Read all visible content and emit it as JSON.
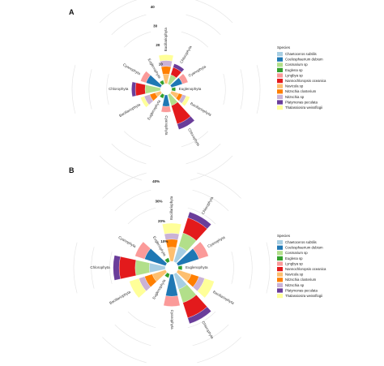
{
  "figure": {
    "colors": {
      "Chaetoceros subtilis": "#a6cee3",
      "Coelosphaerium dubium": "#1f78b4",
      "Cosmarium sp": "#b2df8a",
      "Euglena sp": "#33a02c",
      "Lyngbya sp": "#fb9a99",
      "Nannochloropsis oceanica": "#e31a1c",
      "Navicula sp": "#fdbf6f",
      "Nitzschia closterium": "#ff7f00",
      "Nitzschia sp": "#cab2d6",
      "Platymonas peculata": "#6a3d9a",
      "Thalassiosira weissflogii": "#ffff99"
    }
  },
  "chart_data": [
    {
      "type": "stacked-polar-bar",
      "panel": "A",
      "legend": {
        "title": "Species",
        "position": "right",
        "items": [
          "Chaetoceros subtilis",
          "Coelosphaerium dubium",
          "Cosmarium sp",
          "Euglena sp",
          "Lyngbya sp",
          "Nannochloropsis oceanica",
          "Navicula sp",
          "Nitzschia closterium",
          "Nitzschia sp",
          "Platymonas peculata",
          "Thalassiosira weissflogii"
        ]
      },
      "radial_axis": {
        "ticks": [
          "10",
          "20",
          "30",
          "40"
        ],
        "max": 40
      },
      "grid": true,
      "categories": [
        "Bacillariophyta",
        "Chlorophyta",
        "Cyanophyta",
        "Euglenophyta",
        "Bacillariophyta",
        "Chlorophyta",
        "Cyanophyta",
        "Euglenophyta",
        "Bacillariophyta",
        "Chlorophyta",
        "Cyanophyta",
        "Euglenophyta"
      ],
      "series": [
        {
          "name": "Chaetoceros subtilis",
          "values": [
            0,
            0,
            0,
            0,
            0,
            0,
            0,
            0,
            0,
            0,
            0,
            0
          ]
        },
        {
          "name": "Coelosphaerium dubium",
          "values": [
            0,
            0,
            6,
            0,
            0,
            0,
            6,
            0,
            0,
            0,
            8,
            0
          ]
        },
        {
          "name": "Cosmarium sp",
          "values": [
            0,
            5,
            0,
            0,
            0,
            6,
            0,
            0,
            0,
            8,
            0,
            0
          ]
        },
        {
          "name": "Euglena sp",
          "values": [
            0,
            0,
            0,
            2,
            0,
            0,
            0,
            2,
            0,
            0,
            0,
            2
          ]
        },
        {
          "name": "Lyngbya sp",
          "values": [
            0,
            0,
            3,
            0,
            0,
            0,
            3,
            0,
            0,
            0,
            3,
            0
          ]
        },
        {
          "name": "Nannochloropsis oceanica",
          "values": [
            0,
            4,
            0,
            0,
            0,
            10,
            0,
            0,
            0,
            5,
            0,
            0
          ]
        },
        {
          "name": "Navicula sp",
          "values": [
            5,
            0,
            0,
            0,
            4,
            0,
            0,
            0,
            3,
            0,
            0,
            0
          ]
        },
        {
          "name": "Nitzschia closterium",
          "values": [
            4,
            0,
            0,
            0,
            2,
            0,
            0,
            0,
            3,
            0,
            0,
            0
          ]
        },
        {
          "name": "Nitzschia sp",
          "values": [
            3,
            0,
            0,
            0,
            2,
            0,
            0,
            0,
            3,
            0,
            0,
            0
          ]
        },
        {
          "name": "Platymonas peculata",
          "values": [
            0,
            2,
            0,
            0,
            0,
            3,
            0,
            0,
            0,
            2,
            0,
            0
          ]
        },
        {
          "name": "Thalassiosira weissflogii",
          "values": [
            3,
            0,
            0,
            0,
            2,
            0,
            0,
            0,
            2,
            0,
            0,
            0
          ]
        }
      ]
    },
    {
      "type": "stacked-polar-bar",
      "panel": "B",
      "legend": {
        "title": "Species",
        "position": "right",
        "items": [
          "Chaetoceros subtilis",
          "Coelosphaerium dubium",
          "Cosmarium sp",
          "Euglena sp",
          "Lyngbya sp",
          "Nannochloropsis oceanica",
          "Navicula sp",
          "Nitzschia closterium",
          "Nitzschia sp",
          "Platymonas peculata",
          "Thalassiosira weissflogii"
        ]
      },
      "radial_axis": {
        "ticks": [
          "10%",
          "20%",
          "30%",
          "40%"
        ],
        "max": 40
      },
      "grid": true,
      "categories": [
        "Bacillariophyta",
        "Chlorophyta",
        "Cyanophyta",
        "Euglenophyta",
        "Bacillariophyta",
        "Chlorophyta",
        "Cyanophyta",
        "Euglenophyta",
        "Bacillariophyta",
        "Chlorophyta",
        "Cyanophyta",
        "Euglenophyta"
      ],
      "series": [
        {
          "name": "Chaetoceros subtilis",
          "values": [
            0,
            8,
            0,
            0,
            0,
            8,
            0,
            0,
            0,
            8,
            0,
            0
          ]
        },
        {
          "name": "Coelosphaerium dubium",
          "values": [
            0,
            0,
            11,
            0,
            0,
            0,
            11,
            0,
            0,
            0,
            11,
            0
          ]
        },
        {
          "name": "Cosmarium sp",
          "values": [
            0,
            7,
            0,
            0,
            0,
            7,
            0,
            0,
            0,
            7,
            0,
            0
          ]
        },
        {
          "name": "Euglena sp",
          "values": [
            0,
            0,
            0,
            2,
            0,
            0,
            0,
            2,
            0,
            0,
            0,
            2
          ]
        },
        {
          "name": "Lyngbya sp",
          "values": [
            0,
            0,
            5,
            0,
            0,
            0,
            5,
            0,
            0,
            0,
            5,
            0
          ]
        },
        {
          "name": "Nannochloropsis oceanica",
          "values": [
            0,
            8,
            0,
            0,
            0,
            8,
            0,
            0,
            0,
            8,
            0,
            0
          ]
        },
        {
          "name": "Navicula sp",
          "values": [
            7,
            0,
            0,
            0,
            7,
            0,
            0,
            0,
            7,
            0,
            0,
            0
          ]
        },
        {
          "name": "Nitzschia closterium",
          "values": [
            4,
            0,
            0,
            0,
            4,
            0,
            0,
            0,
            4,
            0,
            0,
            0
          ]
        },
        {
          "name": "Nitzschia sp",
          "values": [
            3,
            0,
            0,
            0,
            3,
            0,
            0,
            0,
            3,
            0,
            0,
            0
          ]
        },
        {
          "name": "Platymonas peculata",
          "values": [
            0,
            3,
            0,
            0,
            0,
            3,
            0,
            0,
            0,
            3,
            0,
            0
          ]
        },
        {
          "name": "Thalassiosira weissflogii",
          "values": [
            5,
            0,
            0,
            0,
            5,
            0,
            0,
            0,
            5,
            0,
            0,
            0
          ]
        }
      ]
    }
  ]
}
